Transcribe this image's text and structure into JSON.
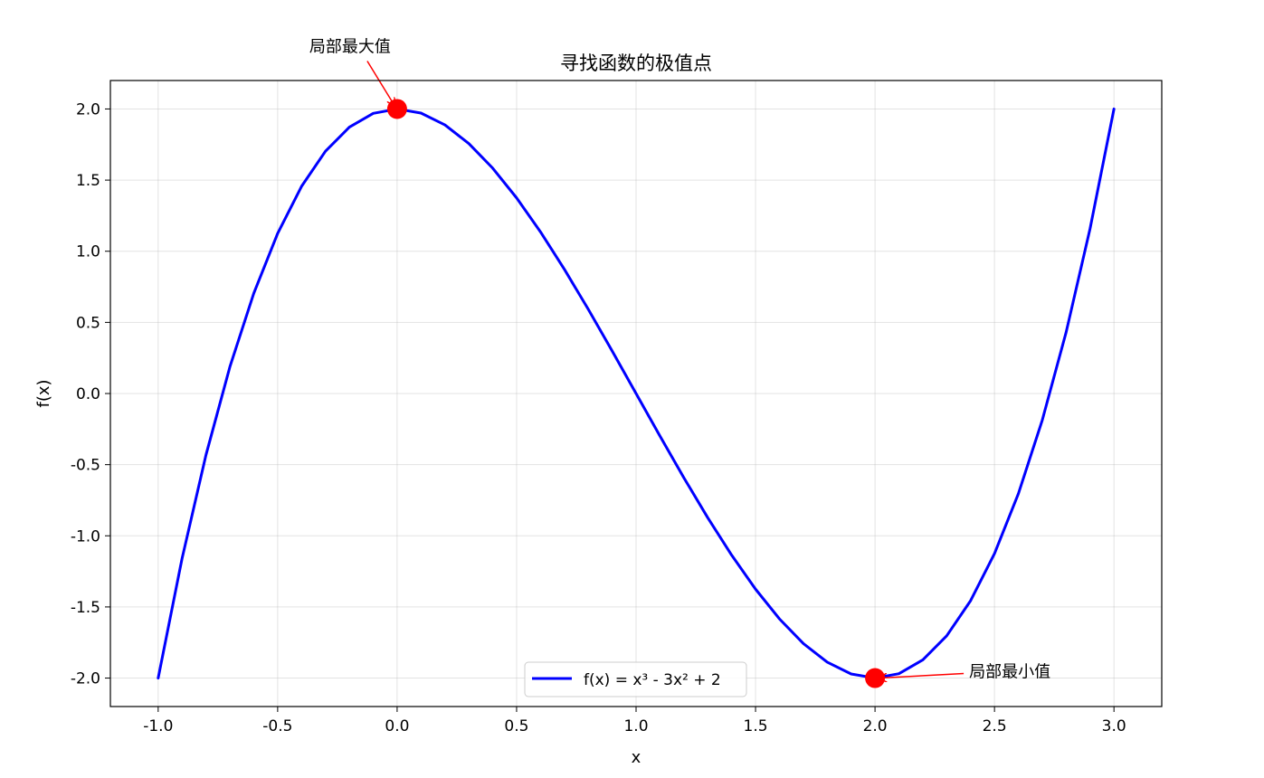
{
  "chart_data": {
    "type": "line",
    "title": "寻找函数的极值点",
    "xlabel": "x",
    "ylabel": "f(x)",
    "xlim": [
      -1.2,
      3.2
    ],
    "ylim": [
      -2.2,
      2.2
    ],
    "xticks": [
      -1.0,
      -0.5,
      0.0,
      0.5,
      1.0,
      1.5,
      2.0,
      2.5,
      3.0
    ],
    "xtick_labels": [
      "-1.0",
      "-0.5",
      "0.0",
      "0.5",
      "1.0",
      "1.5",
      "2.0",
      "2.5",
      "3.0"
    ],
    "yticks": [
      -2.0,
      -1.5,
      -1.0,
      -0.5,
      0.0,
      0.5,
      1.0,
      1.5,
      2.0
    ],
    "ytick_labels": [
      "-2.0",
      "-1.5",
      "-1.0",
      "-0.5",
      "0.0",
      "0.5",
      "1.0",
      "1.5",
      "2.0"
    ],
    "grid": true,
    "legend_position": "bottom-center",
    "series": [
      {
        "name": "f(x) = x³ - 3x² + 2",
        "color": "#0000ff",
        "x": [
          -1.0,
          -0.9,
          -0.8,
          -0.7,
          -0.6,
          -0.5,
          -0.4,
          -0.3,
          -0.2,
          -0.1,
          0.0,
          0.1,
          0.2,
          0.3,
          0.4,
          0.5,
          0.6,
          0.7,
          0.8,
          0.9,
          1.0,
          1.1,
          1.2,
          1.3,
          1.4,
          1.5,
          1.6,
          1.7,
          1.8,
          1.9,
          2.0,
          2.1,
          2.2,
          2.3,
          2.4,
          2.5,
          2.6,
          2.7,
          2.8,
          2.9,
          3.0
        ],
        "y": [
          -2.0,
          -1.159,
          -0.432,
          0.187,
          0.704,
          1.125,
          1.456,
          1.703,
          1.872,
          1.969,
          2.0,
          1.971,
          1.888,
          1.757,
          1.584,
          1.375,
          1.136,
          0.873,
          0.592,
          0.299,
          0.0,
          -0.299,
          -0.592,
          -0.873,
          -1.136,
          -1.375,
          -1.584,
          -1.757,
          -1.888,
          -1.971,
          -2.0,
          -1.969,
          -1.872,
          -1.703,
          -1.456,
          -1.125,
          -0.704,
          -0.187,
          0.432,
          1.159,
          2.0
        ]
      }
    ],
    "extrema": [
      {
        "x": 0.0,
        "y": 2.0,
        "label": "局部最大值",
        "color": "#ff0000"
      },
      {
        "x": 2.0,
        "y": -2.0,
        "label": "局部最小值",
        "color": "#ff0000"
      }
    ]
  }
}
